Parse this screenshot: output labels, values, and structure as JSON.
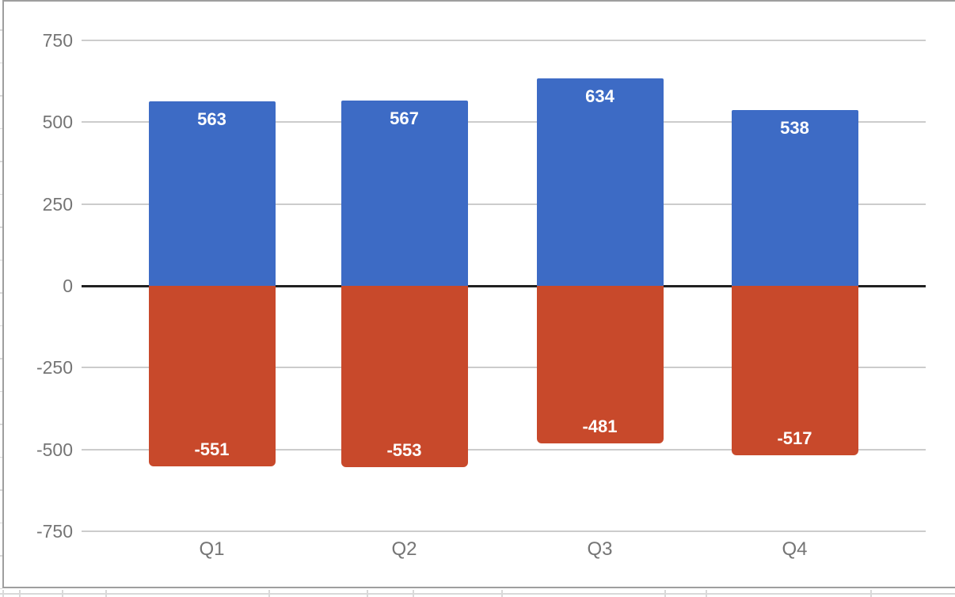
{
  "chart_data": {
    "type": "bar",
    "categories": [
      "Q1",
      "Q2",
      "Q3",
      "Q4"
    ],
    "series": [
      {
        "color": "#3d6bc5",
        "values": [
          563,
          567,
          634,
          538
        ]
      },
      {
        "color": "#c8492b",
        "values": [
          -551,
          -553,
          -481,
          -517
        ]
      }
    ],
    "data_labels": {
      "show": true,
      "color": "#ffffff"
    },
    "y_axis": {
      "ticks": [
        750,
        500,
        250,
        0,
        -250,
        -500,
        -750
      ],
      "range": [
        -750,
        750
      ],
      "label_color": "#757575"
    },
    "x_axis": {
      "label_color": "#757575"
    },
    "grid": {
      "show": true,
      "color": "#cccccc",
      "zero_line_color": "#212121"
    },
    "legend": "none",
    "plot_background": "#ffffff"
  },
  "frame": {
    "border_color": "#9e9e9e",
    "background": "#ffffff"
  }
}
